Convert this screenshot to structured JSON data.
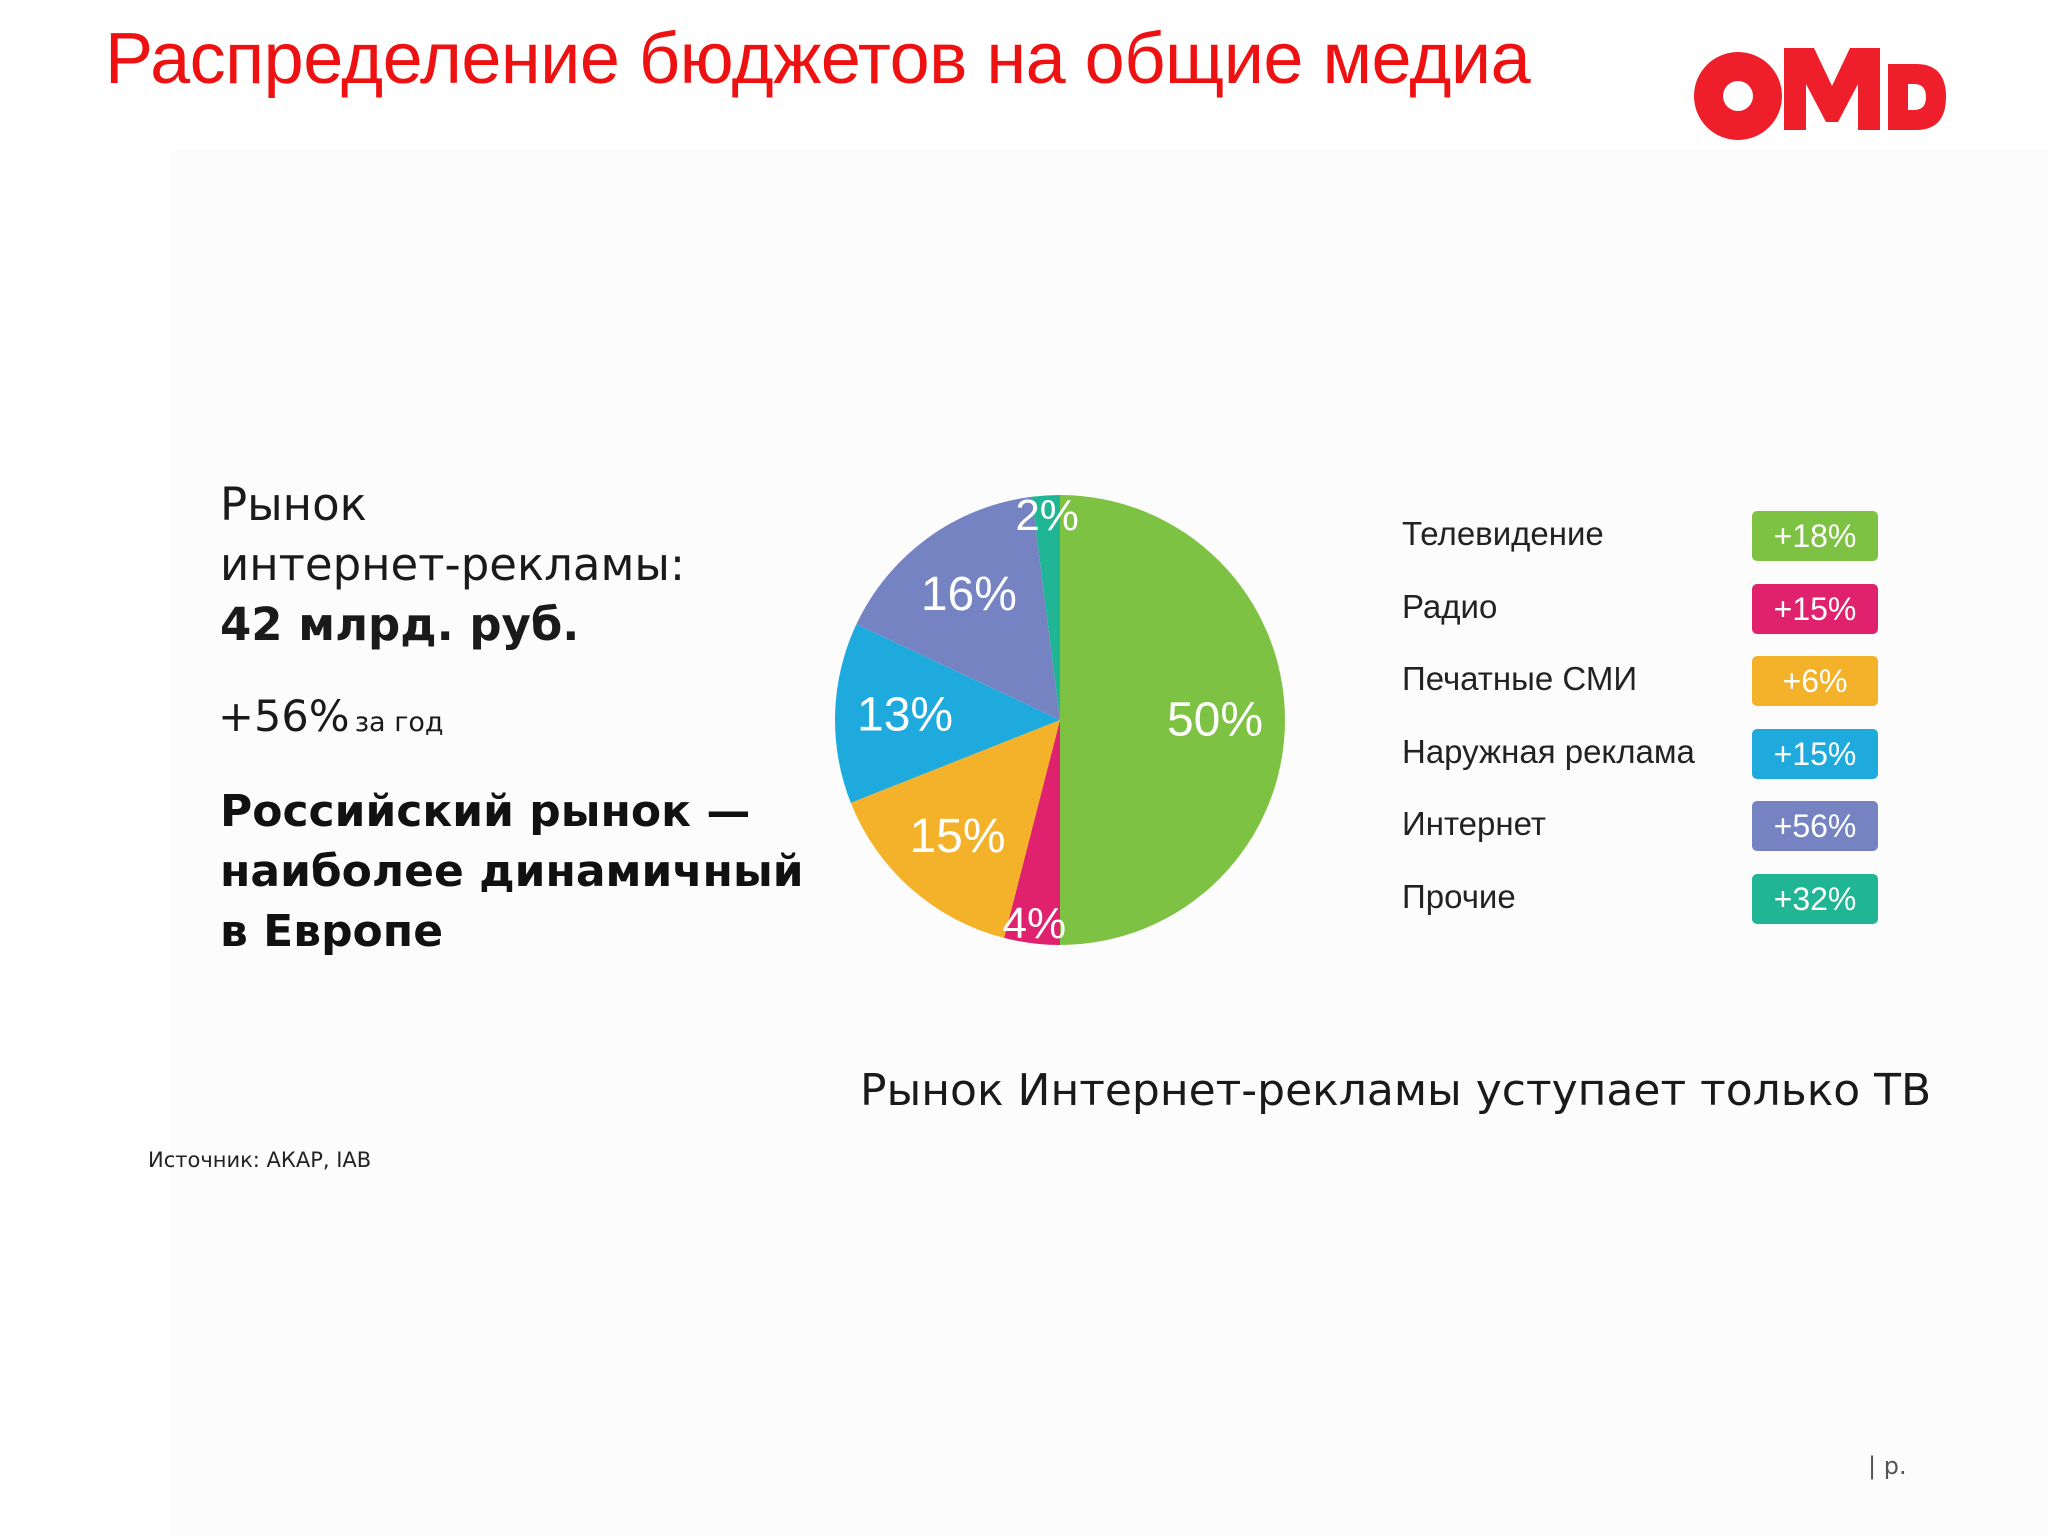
{
  "slide": {
    "title": "Распределение бюджетов на общие медиа",
    "logo_text": "OMD",
    "source": "Источник: АКАР, IAB",
    "page_marker": "| р."
  },
  "left_panel": {
    "line1": "Рынок",
    "line2": "интернет-рекламы:",
    "market_size": "42 млрд. руб.",
    "growth_value": "+56%",
    "growth_period": "за год",
    "claim_lines": [
      "Российский рынок —",
      "наиболее динамичный",
      "в Европе"
    ]
  },
  "summary": "Рынок Интернет-рекламы уступает только ТВ",
  "colors": {
    "title_red": "#ee1111",
    "tv": "#7dc242",
    "radio": "#e0216e",
    "print": "#f4b22a",
    "outdoor": "#1eaadd",
    "internet": "#7683c3",
    "other": "#20b594"
  },
  "chart_data": {
    "type": "pie",
    "title": "",
    "start_angle_deg": 0,
    "direction": "clockwise",
    "slices": [
      {
        "label": "Телевидение",
        "value": 50,
        "value_label": "50%",
        "color": "#7dc242",
        "growth": "+18%"
      },
      {
        "label": "Радио",
        "value": 4,
        "value_label": "4%",
        "color": "#e0216e",
        "growth": "+15%"
      },
      {
        "label": "Печатные СМИ",
        "value": 15,
        "value_label": "15%",
        "color": "#f4b22a",
        "growth": "+6%"
      },
      {
        "label": "Наружная реклама",
        "value": 13,
        "value_label": "13%",
        "color": "#1eaadd",
        "growth": "+15%"
      },
      {
        "label": "Интернет",
        "value": 16,
        "value_label": "16%",
        "color": "#7683c3",
        "growth": "+56%"
      },
      {
        "label": "Прочие",
        "value": 2,
        "value_label": "2%",
        "color": "#20b594",
        "growth": "+32%"
      }
    ],
    "legend": {
      "position": "right",
      "items": [
        {
          "label": "Телевидение",
          "growth": "+18%",
          "color": "#7dc242"
        },
        {
          "label": "Радио",
          "growth": "+15%",
          "color": "#e0216e"
        },
        {
          "label": "Печатные СМИ",
          "growth": "+6%",
          "color": "#f4b22a"
        },
        {
          "label": "Наружная реклама",
          "growth": "+15%",
          "color": "#1eaadd"
        },
        {
          "label": "Интернет",
          "growth": "+56%",
          "color": "#7683c3"
        },
        {
          "label": "Прочие",
          "growth": "+32%",
          "color": "#20b594"
        }
      ]
    }
  }
}
